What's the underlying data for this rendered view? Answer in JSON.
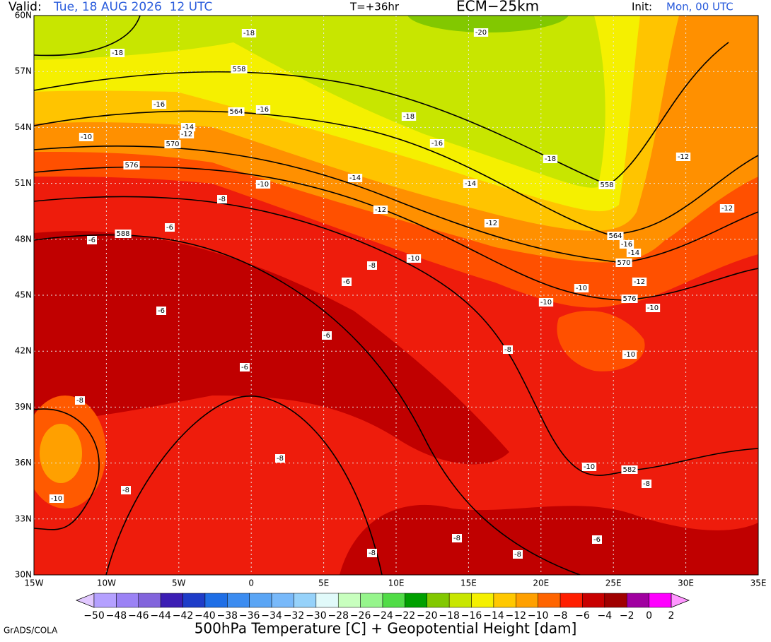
{
  "header": {
    "valid_label": "Valid:",
    "valid_time": "Tue, 18 AUG 2026  12 UTC",
    "lead_time": "T=+36hr",
    "model": "ECM−25km",
    "init_label": "Init:",
    "init_time": "Mon, 00 UTC"
  },
  "map": {
    "lat_labels": [
      "60N",
      "57N",
      "54N",
      "51N",
      "48N",
      "45N",
      "42N",
      "39N",
      "36N",
      "33N",
      "30N"
    ],
    "lon_labels": [
      "15W",
      "10W",
      "5W",
      "0",
      "5E",
      "10E",
      "15E",
      "20E",
      "25E",
      "30E",
      "35E"
    ],
    "contour_labels": [
      "-18",
      "-18",
      "-20",
      "558",
      "-16",
      "564",
      "-16",
      "-18",
      "-14",
      "-12",
      "-10",
      "570",
      "-16",
      "-18",
      "-12",
      "576",
      "-14",
      "-10",
      "-14",
      "558",
      "-8",
      "-12",
      "-12",
      "-12",
      "-6",
      "588",
      "-6",
      "564",
      "-16",
      "-14",
      "-10",
      "-8",
      "570",
      "-6",
      "-12",
      "-10",
      "576",
      "-10",
      "-10",
      "-6",
      "-6",
      "-8",
      "-10",
      "-6",
      "-8",
      "-8",
      "-10",
      "582",
      "-8",
      "-8",
      "-10",
      "-8",
      "-6",
      "-8",
      "-8"
    ]
  },
  "colorbar": {
    "labels": [
      "−50",
      "−48",
      "−46",
      "−44",
      "−42",
      "−40",
      "−38",
      "−36",
      "−34",
      "−32",
      "−30",
      "−28",
      "−26",
      "−24",
      "−22",
      "−20",
      "−18",
      "−16",
      "−14",
      "−12",
      "−10",
      "−8",
      "−6",
      "−4",
      "−2",
      "0",
      "2"
    ],
    "colors": [
      "#b4a0ff",
      "#9b82f5",
      "#8264dc",
      "#3c1eb4",
      "#1e3cc8",
      "#1e6ee6",
      "#3c8cf0",
      "#5aa5f5",
      "#78b9fa",
      "#96d2fa",
      "#e1fafa",
      "#c8ffbe",
      "#96f58c",
      "#50dc46",
      "#00a000",
      "#82c800",
      "#c8e600",
      "#f5f000",
      "#ffc800",
      "#ffa000",
      "#ff6400",
      "#ff1e00",
      "#c80000",
      "#a00000",
      "#a000a0",
      "#ff00ff"
    ],
    "under_color": "#e1c8ff",
    "over_color": "#ff96ff"
  },
  "footer": {
    "title": "500hPa Temperature [C] + Geopotential Height [dam]",
    "credit": "GrADS/COLA"
  }
}
